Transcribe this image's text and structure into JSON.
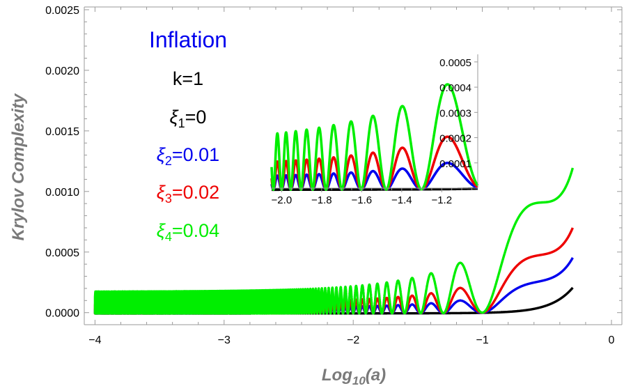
{
  "chart_data": {
    "type": "line",
    "title": "Inflation",
    "xlabel": "Log10(a)",
    "xlabel_main": "Log",
    "xlabel_sub": "10",
    "xlabel_tail": "(a)",
    "ylabel": "Krylov Complexity",
    "xlim": [
      -4,
      0
    ],
    "ylim": [
      -5e-05,
      0.0025
    ],
    "x_ticks": [
      -4,
      -3,
      -2,
      -1,
      0
    ],
    "x_tick_labels": [
      "−4",
      "−3",
      "−2",
      "−1",
      "0"
    ],
    "y_ticks": [
      0,
      0.0005,
      0.001,
      0.0015,
      0.002,
      0.0025
    ],
    "y_tick_labels": [
      "0.0000",
      "0.0005",
      "0.0010",
      "0.0015",
      "0.0020",
      "0.0025"
    ],
    "annotations": [
      {
        "text": "k=1",
        "color": "#000000"
      }
    ],
    "series": [
      {
        "name": "ξ1=0",
        "symbol": "ξ",
        "sub": "1",
        "value": "=0",
        "color": "#000000",
        "xi": 0
      },
      {
        "name": "ξ2=0.01",
        "symbol": "ξ",
        "sub": "2",
        "value": "=0.01",
        "color": "#0000ee",
        "xi": 0.01
      },
      {
        "name": "ξ3=0.02",
        "symbol": "ξ",
        "sub": "3",
        "value": "=0.02",
        "color": "#ee0000",
        "xi": 0.02
      },
      {
        "name": "ξ4=0.04",
        "symbol": "ξ",
        "sub": "4",
        "value": "=0.04",
        "color": "#00ee00",
        "xi": 0.04
      }
    ],
    "inset": {
      "xlim": [
        -2.05,
        -1.02
      ],
      "ylim": [
        0,
        0.00053
      ],
      "x_ticks": [
        -2.0,
        -1.8,
        -1.6,
        -1.4,
        -1.2
      ],
      "x_tick_labels": [
        "−2.0",
        "−1.8",
        "−1.6",
        "−1.4",
        "−1.2"
      ],
      "y_ticks": [
        0.0001,
        0.0002,
        0.0003,
        0.0004,
        0.0005
      ],
      "y_tick_labels": [
        "0.0001",
        "0.0002",
        "0.0003",
        "0.0004",
        "0.0005"
      ]
    }
  }
}
